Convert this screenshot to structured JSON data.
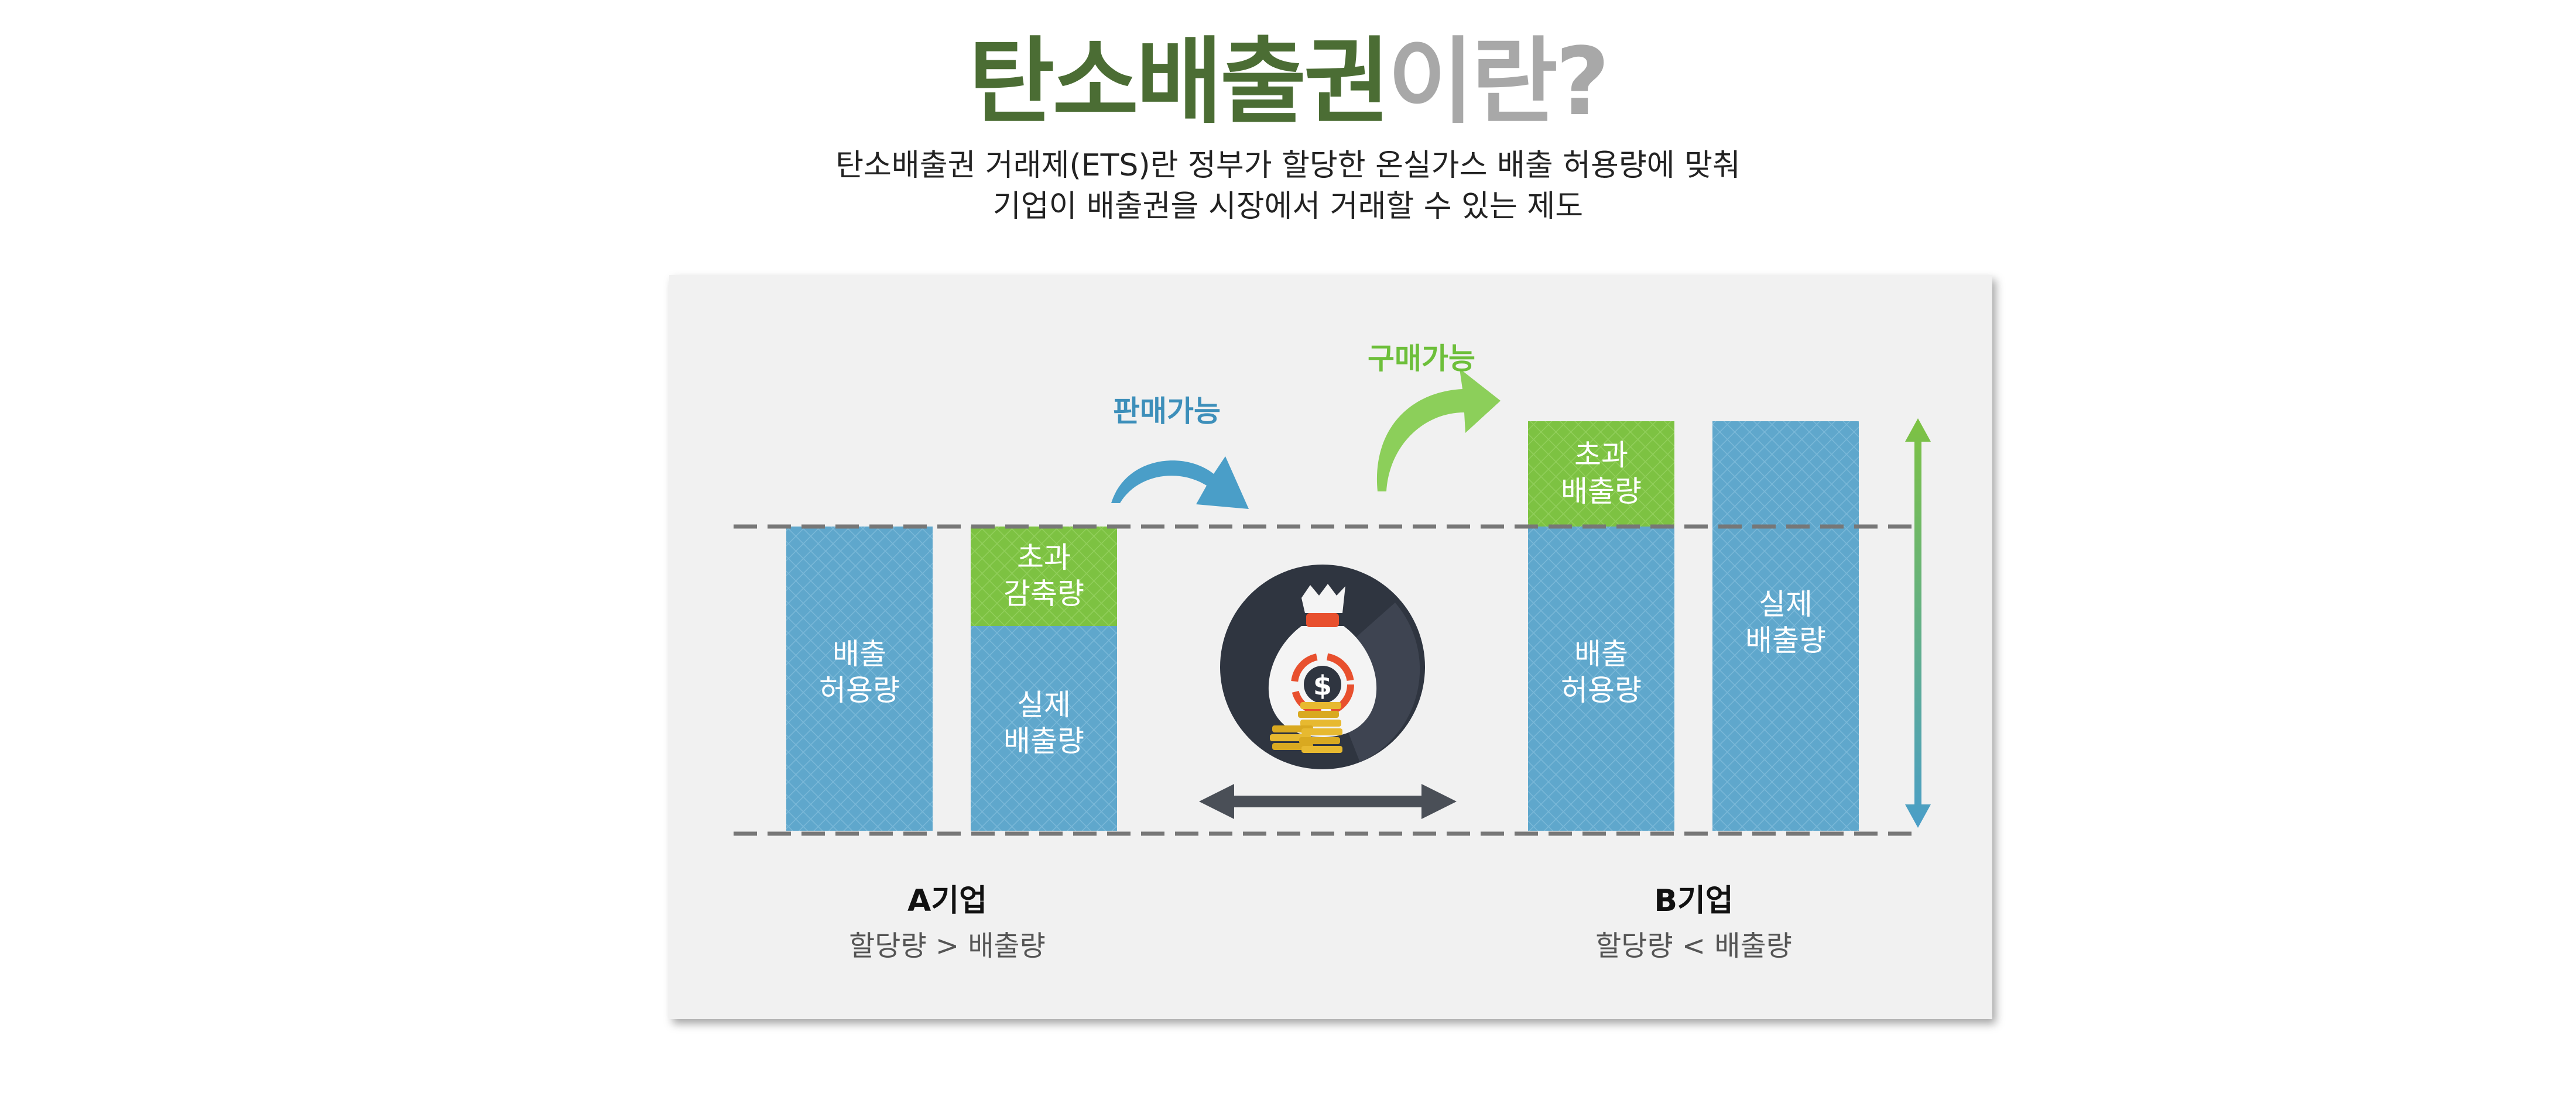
{
  "header": {
    "title_main": "탄소배출권",
    "title_suffix": "이란?",
    "description_line1": "탄소배출권 거래제(ETS)란 정부가 할당한 온실가스 배출 허용량에 맞춰",
    "description_line2": "기업이 배출권을 시장에서 거래할 수 있는 제도"
  },
  "company_a": {
    "name": "A기업",
    "relation": "할당량 > 배출량",
    "bar_allowance": [
      "배출",
      "허용량"
    ],
    "bar_surplus": [
      "초과",
      "감축량"
    ],
    "bar_actual": [
      "실제",
      "배출량"
    ]
  },
  "company_b": {
    "name": "B기업",
    "relation": "할당량 < 배출량",
    "bar_excess": [
      "초과",
      "배출량"
    ],
    "bar_allowance": [
      "배출",
      "허용량"
    ],
    "bar_actual": [
      "실제",
      "배출량"
    ]
  },
  "arrows": {
    "sell_label": "판매가능",
    "buy_label": "구매가능"
  },
  "colors": {
    "title_dark": "#4b6d34",
    "title_light": "#a8a8a8",
    "bar_blue": "#5fa7cc",
    "bar_green": "#7dc242",
    "sell_blue": "#4a9ec8",
    "buy_green": "#8ccf5a",
    "dashed_line": "#777777",
    "circle_dark": "#2f3540"
  },
  "icons": {
    "center": "money-bag-icon",
    "coins": "coin-stack-icon",
    "exchange": "double-arrow-icon",
    "scale": "vertical-double-arrow-icon"
  }
}
